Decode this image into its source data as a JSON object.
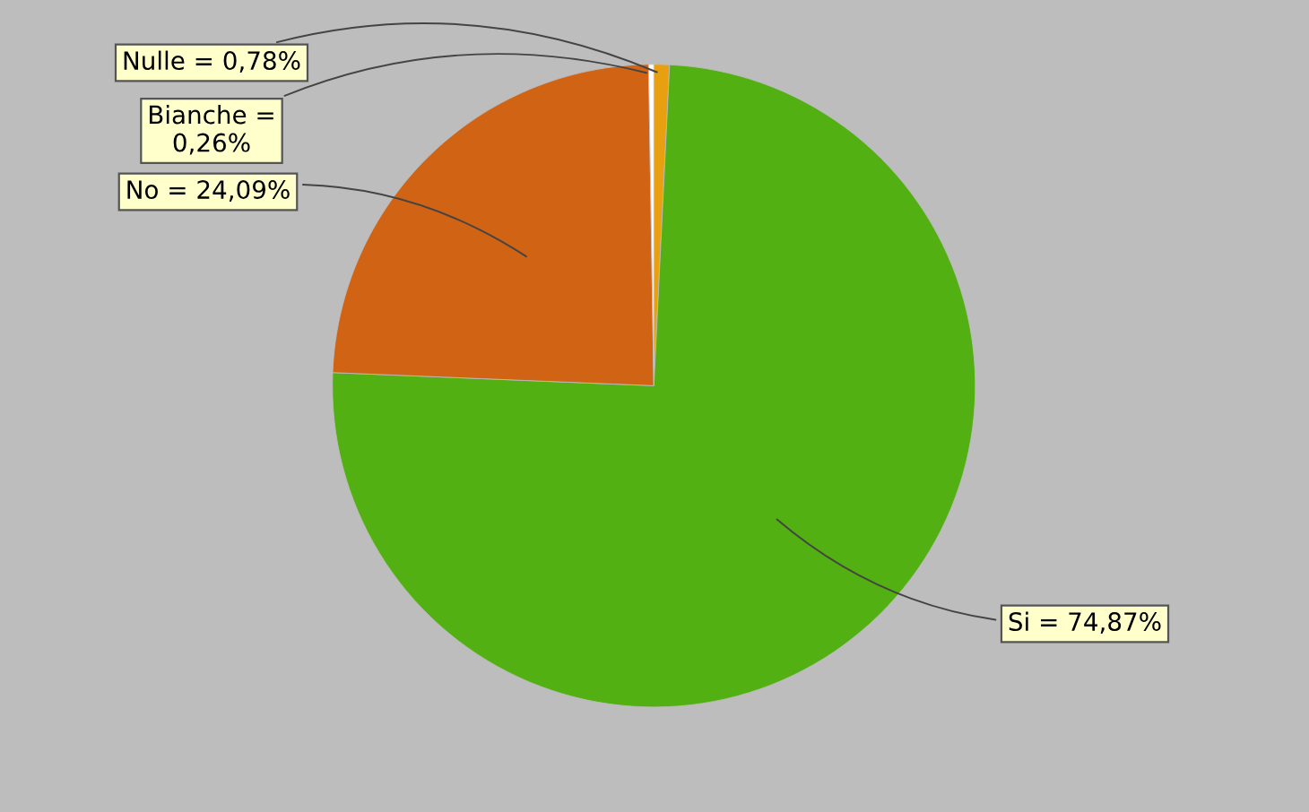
{
  "chart_data": {
    "type": "pie",
    "categories": [
      "Nulle = 0,78%",
      "Si = 74,87%",
      "No = 24,09%",
      "Bianche =\n0,26%"
    ],
    "values": [
      0.78,
      74.87,
      24.09,
      0.26
    ],
    "colors": [
      "#e8a010",
      "#52b012",
      "#d06314",
      "#ffffff"
    ]
  }
}
